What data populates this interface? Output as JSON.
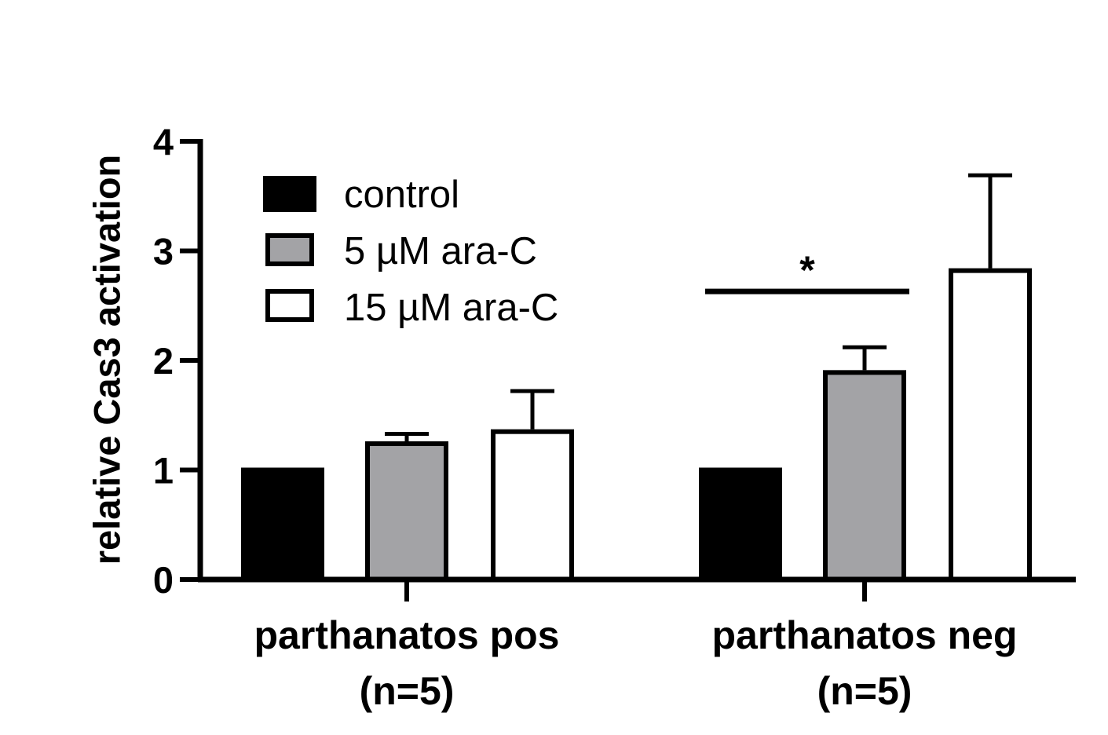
{
  "chart_data": {
    "type": "bar",
    "title": "",
    "xlabel": "",
    "ylabel": "relative Cas3 activation",
    "ylim": [
      0,
      4
    ],
    "yticks": [
      "0",
      "1",
      "2",
      "3",
      "4"
    ],
    "categories": [
      {
        "line1": "parthanatos pos",
        "line2": "(n=5)"
      },
      {
        "line1": "parthanatos neg",
        "line2": "(n=5)"
      }
    ],
    "series": [
      {
        "name": "control",
        "color": "#000000",
        "values": [
          1.0,
          1.0
        ],
        "errors": [
          0,
          0
        ]
      },
      {
        "name": "5 µM ara-C",
        "color": "#a3a3a6",
        "values": [
          1.24,
          1.89
        ],
        "errors": [
          0.09,
          0.23
        ]
      },
      {
        "name": "15 µM ara-C",
        "color": "#ffffff",
        "values": [
          1.35,
          2.82
        ],
        "errors": [
          0.37,
          0.87
        ]
      }
    ],
    "legend_position": "top-left",
    "significance": [
      {
        "label": "*",
        "category_index": 1,
        "series_from": 0,
        "series_to": 1,
        "y": 2.63
      }
    ]
  }
}
